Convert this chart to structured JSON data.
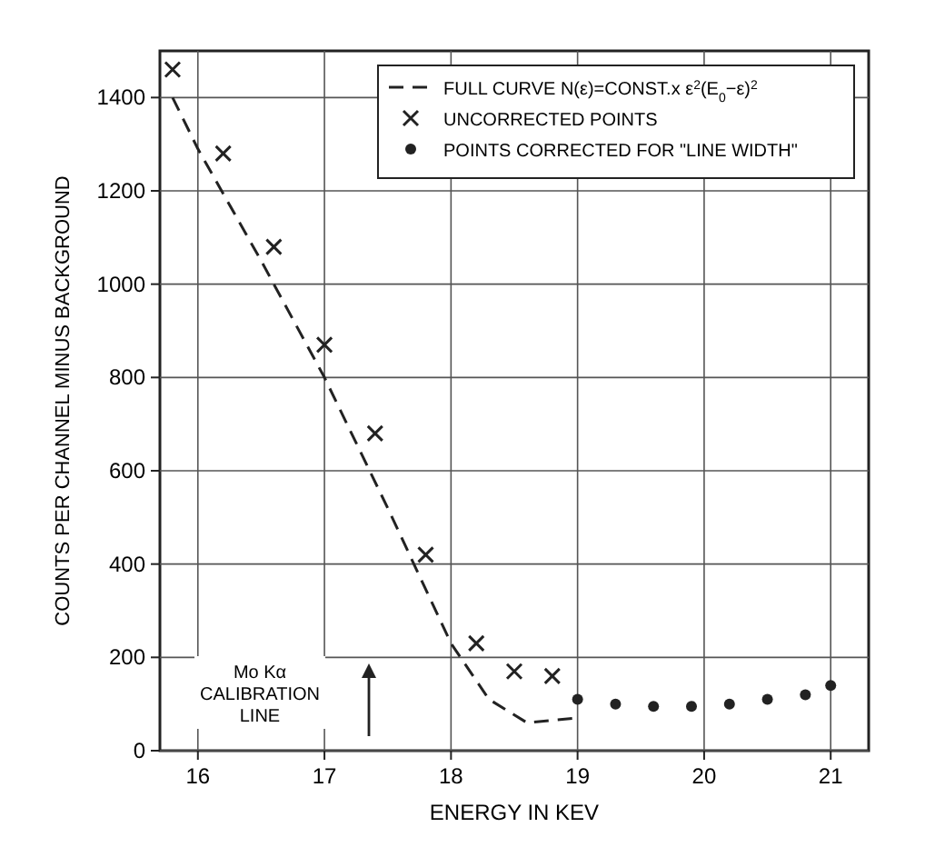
{
  "chart_data": {
    "type": "line",
    "xlabel": "ENERGY IN KEV",
    "ylabel": "COUNTS PER CHANNEL MINUS BACKGROUND",
    "xlim": [
      15.7,
      21.3
    ],
    "ylim": [
      0,
      1500
    ],
    "xticks": [
      16,
      17,
      18,
      19,
      20,
      21
    ],
    "yticks": [
      0,
      200,
      400,
      600,
      800,
      1000,
      1200,
      1400
    ],
    "grid": true,
    "legend": "top right",
    "series": [
      {
        "name": "FULL CURVE N(ε)=CONST.x ε$^{2}$(E$_{0}$−ε)$^{2}$",
        "color": "#222222",
        "line_style": "dashed",
        "marker": "none",
        "x": [
          15.8,
          16.0,
          16.5,
          17.0,
          17.5,
          18.0,
          18.3,
          18.6,
          19.0
        ],
        "values": [
          1400,
          1290,
          1050,
          800,
          520,
          230,
          110,
          60,
          70
        ]
      },
      {
        "name": "UNCORRECTED POINTS",
        "type": "scatter",
        "color": "#222222",
        "marker": "cross",
        "x": [
          15.8,
          16.2,
          16.6,
          17.0,
          17.4,
          17.8,
          18.2,
          18.5,
          18.8
        ],
        "values": [
          1460,
          1280,
          1080,
          870,
          680,
          420,
          230,
          170,
          160
        ]
      },
      {
        "name": "POINTS CORRECTED FOR \"LINE WIDTH\"",
        "type": "scatter",
        "color": "#222222",
        "marker": "circle",
        "x": [
          19.0,
          19.3,
          19.6,
          19.9,
          20.2,
          20.5,
          20.8,
          21.0
        ],
        "values": [
          110,
          100,
          95,
          95,
          100,
          110,
          120,
          140
        ]
      }
    ],
    "annotations": [
      "Mo Kα CALIBRATION LINE"
    ]
  }
}
